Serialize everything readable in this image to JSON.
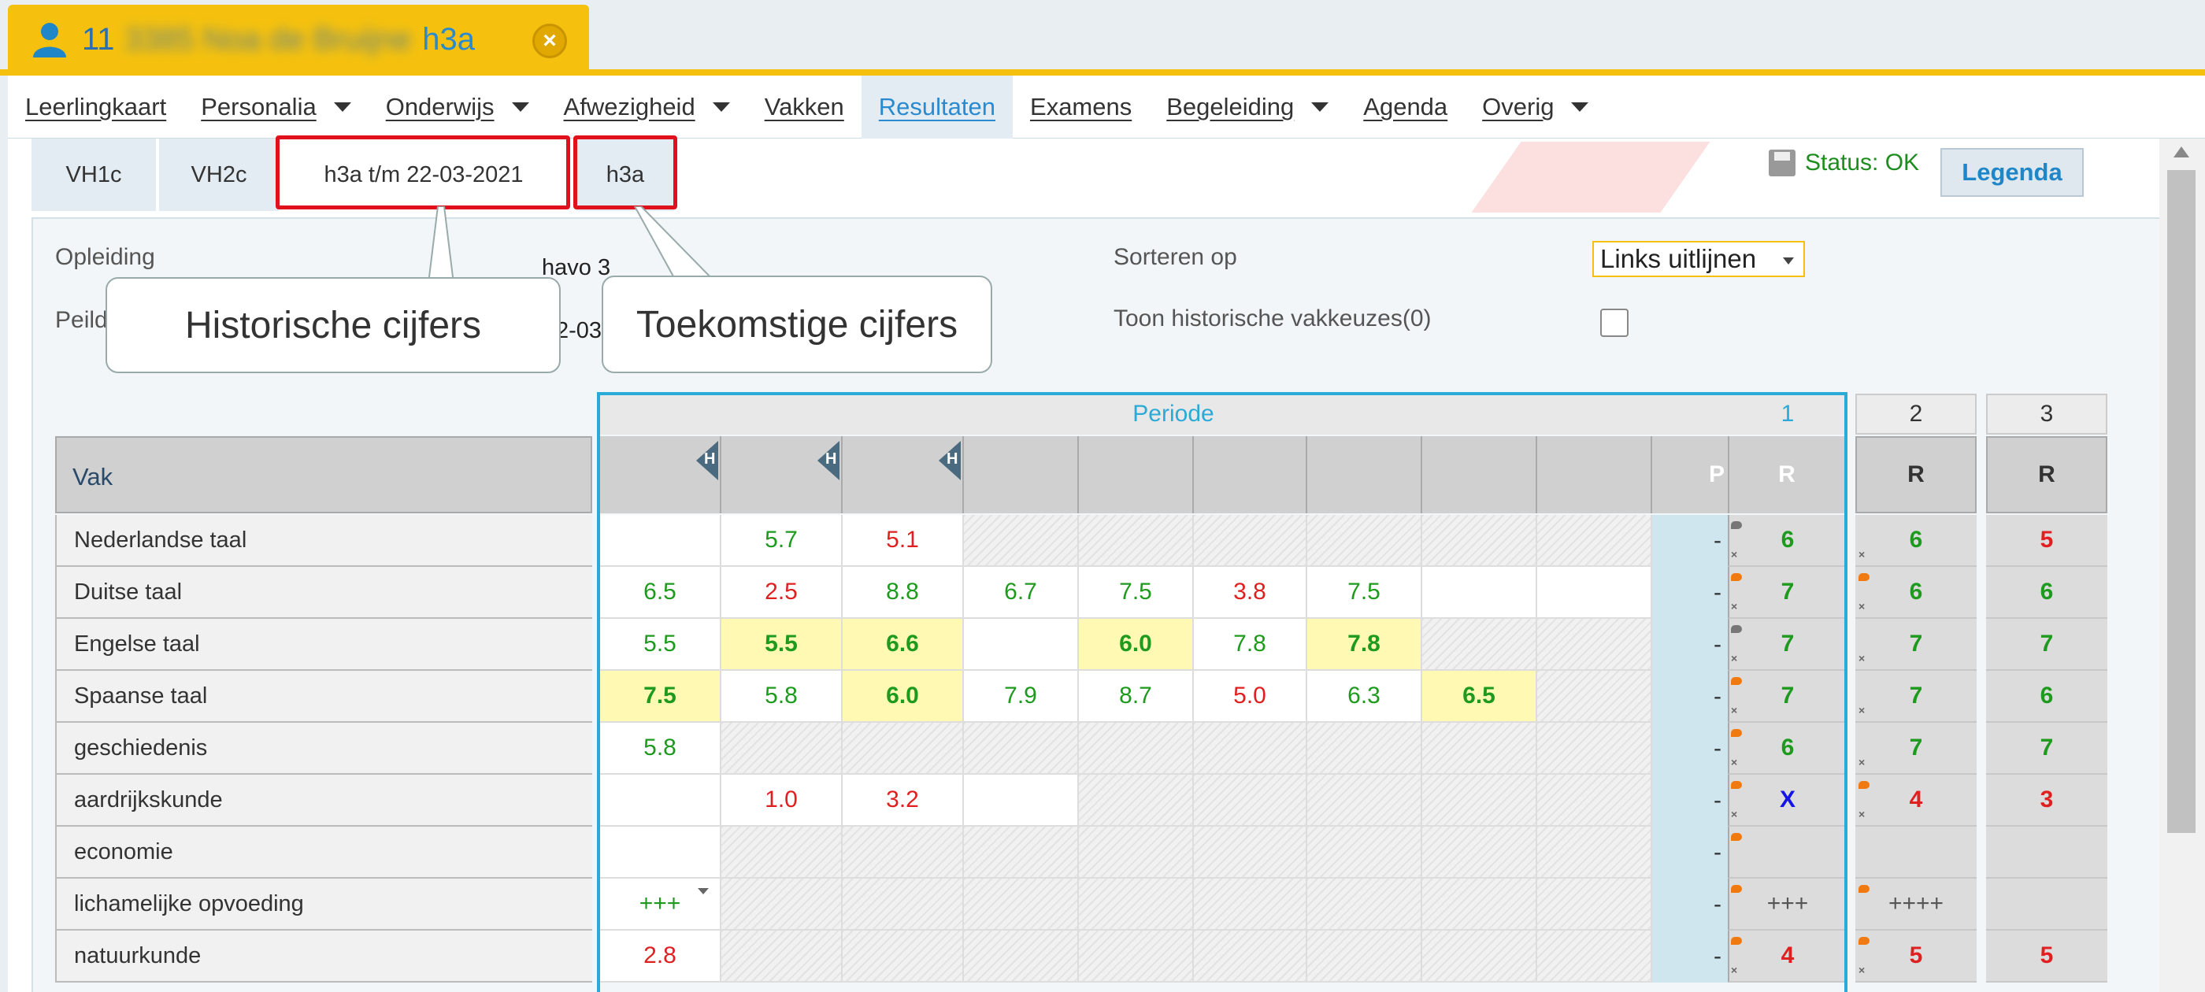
{
  "student": {
    "id_visible": "11",
    "id_blurred": "3385  Noa de Bruijne",
    "class": "h3a"
  },
  "menu": [
    {
      "label": "Leerlingkaart",
      "caret": false
    },
    {
      "label": "Personalia",
      "caret": true
    },
    {
      "label": "Onderwijs",
      "caret": true
    },
    {
      "label": "Afwezigheid",
      "caret": true
    },
    {
      "label": "Vakken",
      "caret": false
    },
    {
      "label": "Resultaten",
      "caret": false,
      "active": true
    },
    {
      "label": "Examens",
      "caret": false
    },
    {
      "label": "Begeleiding",
      "caret": true
    },
    {
      "label": "Agenda",
      "caret": false
    },
    {
      "label": "Overig",
      "caret": true
    }
  ],
  "subtabs": [
    "VH1c",
    "VH2c",
    "h3a t/m 22-03-2021",
    "h3a"
  ],
  "status": "Status: OK",
  "legenda": "Legenda",
  "form": {
    "opleiding_label": "Opleiding",
    "opleiding_value": "havo 3",
    "peil_label": "Peild",
    "peil_value": "2-03",
    "sort_label": "Sorteren op",
    "sort_value": "Links uitlijnen",
    "hist_label": "Toon historische vakkeuzes(0)"
  },
  "callouts": {
    "hist": "Historische cijfers",
    "future": "Toekomstige cijfers"
  },
  "table": {
    "periode_label": "Periode",
    "period_numbers": [
      "1",
      "2",
      "3"
    ],
    "vak_header": "Vak",
    "col_p": "P",
    "col_r": "R",
    "h_marker": "H",
    "rows": [
      {
        "vak": "Nederlandse taal",
        "grades": [
          "",
          "5.7",
          "5.1",
          "",
          "",
          "",
          "",
          "",
          ""
        ],
        "dash": "-",
        "r1": "6",
        "r2": "6",
        "r3": "5"
      },
      {
        "vak": "Duitse taal",
        "grades": [
          "6.5",
          "2.5",
          "8.8",
          "6.7",
          "7.5",
          "3.8",
          "7.5",
          "",
          ""
        ],
        "dash": "-",
        "r1": "7",
        "r2": "6",
        "r3": "6"
      },
      {
        "vak": "Engelse taal",
        "grades": [
          "5.5",
          "5.5",
          "6.6",
          "",
          "6.0",
          "7.8",
          "7.8",
          "",
          ""
        ],
        "dash": "-",
        "r1": "7",
        "r2": "7",
        "r3": "7"
      },
      {
        "vak": "Spaanse taal",
        "grades": [
          "7.5",
          "5.8",
          "6.0",
          "7.9",
          "8.7",
          "5.0",
          "6.3",
          "6.5",
          ""
        ],
        "dash": "-",
        "r1": "7",
        "r2": "7",
        "r3": "6"
      },
      {
        "vak": "geschiedenis",
        "grades": [
          "5.8",
          "",
          "",
          "",
          "",
          "",
          "",
          "",
          ""
        ],
        "dash": "-",
        "r1": "6",
        "r2": "7",
        "r3": "7"
      },
      {
        "vak": "aardrijkskunde",
        "grades": [
          "",
          "1.0",
          "3.2",
          "",
          "",
          "",
          "",
          "",
          ""
        ],
        "dash": "-",
        "r1": "X",
        "r2": "4",
        "r3": "3"
      },
      {
        "vak": "economie",
        "grades": [
          "",
          "",
          "",
          "",
          "",
          "",
          "",
          "",
          ""
        ],
        "dash": "-",
        "r1": "",
        "r2": "",
        "r3": ""
      },
      {
        "vak": "lichamelijke opvoeding",
        "grades": [
          "+++",
          "",
          "",
          "",
          "",
          "",
          "",
          "",
          ""
        ],
        "dash": "-",
        "r1": "+++",
        "r2": "++++",
        "r3": ""
      },
      {
        "vak": "natuurkunde",
        "grades": [
          "2.8",
          "",
          "",
          "",
          "",
          "",
          "",
          "",
          ""
        ],
        "dash": "-",
        "r1": "4",
        "r2": "5",
        "r3": "5"
      }
    ]
  }
}
